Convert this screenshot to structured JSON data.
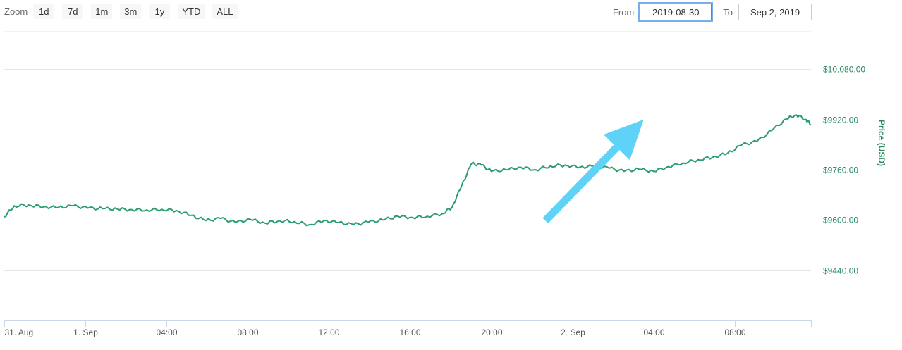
{
  "zoom": {
    "label": "Zoom",
    "buttons": [
      "1d",
      "7d",
      "1m",
      "3m",
      "1y",
      "YTD",
      "ALL"
    ]
  },
  "range": {
    "from_label": "From",
    "from_value": "2019-08-30",
    "to_label": "To",
    "to_value": "Sep 2, 2019"
  },
  "colors": {
    "line": "#2a9d6e",
    "arrow": "#5fd3f7",
    "axis_text": "#2a8a5e",
    "grid": "#e6e6e6"
  },
  "chart_data": {
    "type": "line",
    "ylabel": "Price (USD)",
    "ylim": [
      9280,
      10200
    ],
    "yticks": [
      9440,
      9600,
      9760,
      9920,
      10080
    ],
    "ytick_labels": [
      "$9440.00",
      "$9600.00",
      "$9760.00",
      "$9920.00",
      "$10,080.00"
    ],
    "x_unit": "hour since 31 Aug 00:00",
    "xlim": [
      18,
      34.4
    ],
    "xticks": [
      18,
      19.65,
      21.3,
      22.95,
      24.6,
      26.25,
      27.9,
      29.55,
      31.2,
      32.85,
      34.4
    ],
    "xtick_values": [
      18,
      20,
      22,
      24,
      28,
      30,
      32,
      34,
      38,
      40,
      42
    ],
    "xtick_labels": [
      "31. Aug",
      "1. Sep",
      "04:00",
      "08:00",
      "12:00",
      "16:00",
      "20:00",
      "2. Sep",
      "04:00",
      "08:00",
      ""
    ],
    "series": [
      {
        "name": "Price (USD)",
        "x": [
          18.0,
          18.2,
          18.5,
          18.8,
          19.1,
          19.4,
          19.7,
          20.0,
          20.3,
          20.6,
          20.9,
          21.2,
          21.5,
          21.8,
          22.1,
          22.4,
          22.7,
          23.0,
          23.3,
          23.6,
          23.9,
          24.2,
          24.5,
          24.8,
          25.1,
          25.4,
          25.7,
          26.0,
          26.3,
          26.6,
          26.9,
          27.1,
          27.3,
          27.5,
          27.7,
          27.9,
          28.2,
          28.5,
          28.8,
          29.1,
          29.4,
          29.7,
          30.0,
          30.3,
          30.6,
          30.9,
          31.2,
          31.5,
          31.8,
          32.1,
          32.4,
          32.7,
          33.0,
          33.3,
          33.6,
          33.9,
          34.1,
          34.3,
          34.4
        ],
        "y": [
          9610,
          9645,
          9648,
          9642,
          9640,
          9645,
          9638,
          9636,
          9635,
          9633,
          9632,
          9634,
          9630,
          9615,
          9598,
          9605,
          9592,
          9602,
          9590,
          9598,
          9595,
          9585,
          9598,
          9592,
          9585,
          9593,
          9600,
          9612,
          9608,
          9612,
          9620,
          9640,
          9710,
          9780,
          9775,
          9755,
          9760,
          9768,
          9760,
          9772,
          9775,
          9768,
          9772,
          9765,
          9755,
          9762,
          9755,
          9770,
          9782,
          9792,
          9800,
          9812,
          9840,
          9850,
          9885,
          9922,
          9935,
          9920,
          9905
        ]
      }
    ],
    "annotation": {
      "type": "arrow",
      "from": [
        29.0,
        9598
      ],
      "to": [
        31.0,
        9920
      ]
    },
    "grid": true,
    "legend": "none"
  }
}
